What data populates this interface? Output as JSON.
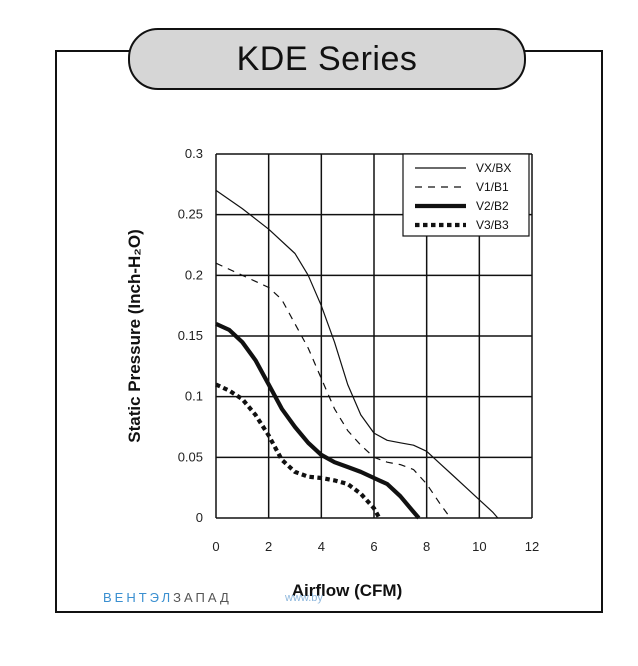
{
  "title": "KDE Series",
  "watermark": {
    "part1": "ВЕНТЭЛ",
    "part2": "ЗАПАД",
    "url": "www.by"
  },
  "chart_data": {
    "type": "line",
    "xlabel": "Airflow (CFM)",
    "ylabel": "Static Pressure (Inch-H₂O)",
    "xlim": [
      0,
      12
    ],
    "ylim": [
      0,
      0.3
    ],
    "xticks": [
      "0",
      "2",
      "4",
      "6",
      "8",
      "10",
      "12"
    ],
    "yticks": [
      "0",
      "0.05",
      "0.1",
      "0.15",
      "0.2",
      "0.25",
      "0.3"
    ],
    "grid": true,
    "legend_position": "top-right",
    "series": [
      {
        "name": "VX/BX",
        "style": "thin-solid",
        "points": [
          [
            0,
            0.27
          ],
          [
            1,
            0.255
          ],
          [
            2,
            0.238
          ],
          [
            3,
            0.218
          ],
          [
            3.5,
            0.2
          ],
          [
            4,
            0.175
          ],
          [
            4.5,
            0.145
          ],
          [
            5,
            0.11
          ],
          [
            5.5,
            0.085
          ],
          [
            6,
            0.07
          ],
          [
            6.5,
            0.064
          ],
          [
            7,
            0.062
          ],
          [
            7.5,
            0.06
          ],
          [
            8,
            0.055
          ],
          [
            8.5,
            0.045
          ],
          [
            9,
            0.035
          ],
          [
            9.5,
            0.025
          ],
          [
            10,
            0.015
          ],
          [
            10.5,
            0.005
          ],
          [
            10.7,
            0
          ]
        ]
      },
      {
        "name": "V1/B1",
        "style": "thin-dashed",
        "points": [
          [
            0,
            0.21
          ],
          [
            1,
            0.2
          ],
          [
            2,
            0.19
          ],
          [
            2.5,
            0.18
          ],
          [
            3,
            0.16
          ],
          [
            3.5,
            0.14
          ],
          [
            4,
            0.115
          ],
          [
            4.5,
            0.09
          ],
          [
            5,
            0.072
          ],
          [
            5.5,
            0.06
          ],
          [
            6,
            0.05
          ],
          [
            6.5,
            0.046
          ],
          [
            7,
            0.044
          ],
          [
            7.5,
            0.04
          ],
          [
            8,
            0.028
          ],
          [
            8.5,
            0.012
          ],
          [
            8.9,
            0
          ]
        ]
      },
      {
        "name": "V2/B2",
        "style": "thick-solid",
        "points": [
          [
            0,
            0.16
          ],
          [
            0.5,
            0.155
          ],
          [
            1,
            0.145
          ],
          [
            1.5,
            0.13
          ],
          [
            2,
            0.11
          ],
          [
            2.5,
            0.09
          ],
          [
            3,
            0.075
          ],
          [
            3.5,
            0.062
          ],
          [
            4,
            0.052
          ],
          [
            4.5,
            0.046
          ],
          [
            5,
            0.042
          ],
          [
            5.5,
            0.038
          ],
          [
            6,
            0.033
          ],
          [
            6.5,
            0.028
          ],
          [
            7,
            0.018
          ],
          [
            7.5,
            0.005
          ],
          [
            7.7,
            0
          ]
        ]
      },
      {
        "name": "V3/B3",
        "style": "thick-dotted",
        "points": [
          [
            0,
            0.11
          ],
          [
            0.5,
            0.105
          ],
          [
            1,
            0.098
          ],
          [
            1.5,
            0.085
          ],
          [
            2,
            0.068
          ],
          [
            2.5,
            0.048
          ],
          [
            3,
            0.038
          ],
          [
            3.5,
            0.034
          ],
          [
            4,
            0.033
          ],
          [
            4.5,
            0.031
          ],
          [
            5,
            0.028
          ],
          [
            5.5,
            0.02
          ],
          [
            6,
            0.008
          ],
          [
            6.2,
            0
          ]
        ]
      }
    ]
  }
}
